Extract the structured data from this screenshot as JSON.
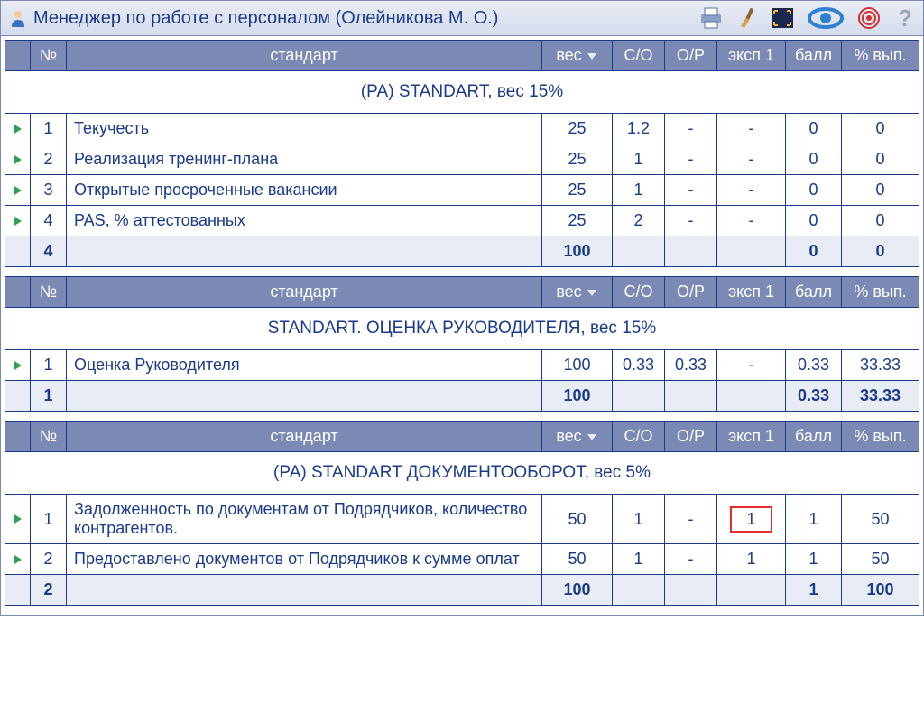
{
  "title": "Менеджер по работе с персоналом  (Олейникова М. О.)",
  "headers": {
    "num": "№",
    "standard": "стандарт",
    "weight": "вес",
    "co": "С/О",
    "or": "О/Р",
    "exp1": "эксп 1",
    "ball": "балл",
    "vyp": "% вып."
  },
  "sections": [
    {
      "group_title": "(РА) STANDART, вес 15%",
      "rows": [
        {
          "n": "1",
          "std": "Текучесть",
          "wt": "25",
          "co": "1.2",
          "or": "-",
          "exp": "-",
          "ball": "0",
          "vyp": "0",
          "hl": false
        },
        {
          "n": "2",
          "std": "Реализация тренинг-плана",
          "wt": "25",
          "co": "1",
          "or": "-",
          "exp": "-",
          "ball": "0",
          "vyp": "0",
          "hl": false
        },
        {
          "n": "3",
          "std": "Открытые просроченные вакансии",
          "wt": "25",
          "co": "1",
          "or": "-",
          "exp": "-",
          "ball": "0",
          "vyp": "0",
          "hl": false
        },
        {
          "n": "4",
          "std": "PAS, % аттестованных",
          "wt": "25",
          "co": "2",
          "or": "-",
          "exp": "-",
          "ball": "0",
          "vyp": "0",
          "hl": false
        }
      ],
      "total": {
        "n": "4",
        "wt": "100",
        "co": "",
        "or": "",
        "exp": "",
        "ball": "0",
        "vyp": "0"
      }
    },
    {
      "group_title": "STANDART. ОЦЕНКА РУКОВОДИТЕЛЯ, вес 15%",
      "rows": [
        {
          "n": "1",
          "std": "Оценка Руководителя",
          "wt": "100",
          "co": "0.33",
          "or": "0.33",
          "exp": "-",
          "ball": "0.33",
          "vyp": "33.33",
          "hl": false
        }
      ],
      "total": {
        "n": "1",
        "wt": "100",
        "co": "",
        "or": "",
        "exp": "",
        "ball": "0.33",
        "vyp": "33.33"
      }
    },
    {
      "group_title": "(РА) STANDART ДОКУМЕНТООБОРОТ, вес 5%",
      "rows": [
        {
          "n": "1",
          "std": "Задолженность по документам от Подрядчиков, количество контрагентов.",
          "wt": "50",
          "co": "1",
          "or": "-",
          "exp": "1",
          "ball": "1",
          "vyp": "50",
          "hl": true
        },
        {
          "n": "2",
          "std": "Предоставлено документов от Подрядчиков к сумме оплат",
          "wt": "50",
          "co": "1",
          "or": "-",
          "exp": "1",
          "ball": "1",
          "vyp": "50",
          "hl": false
        }
      ],
      "total": {
        "n": "2",
        "wt": "100",
        "co": "",
        "or": "",
        "exp": "",
        "ball": "1",
        "vyp": "100"
      }
    }
  ]
}
